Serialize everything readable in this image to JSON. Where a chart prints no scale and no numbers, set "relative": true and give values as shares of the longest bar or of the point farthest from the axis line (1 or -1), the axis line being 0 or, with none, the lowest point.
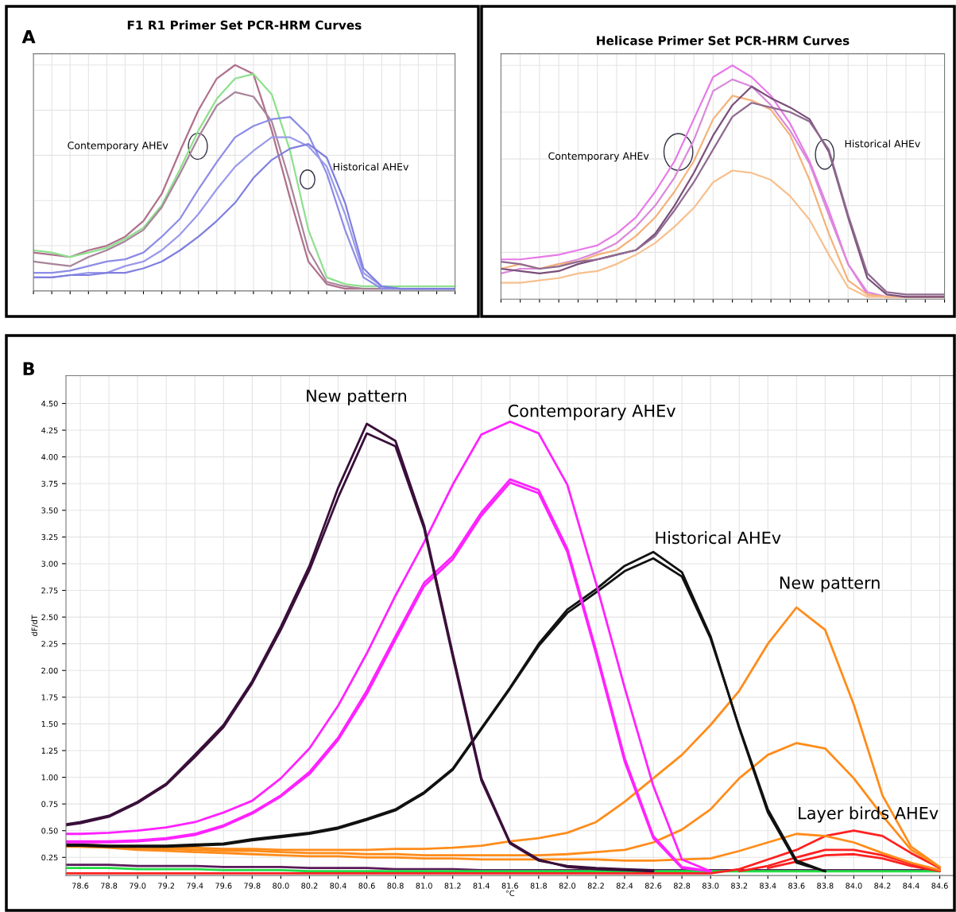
{
  "chart_data": [
    {
      "type": "line",
      "title": "F1 R1 Primer Set PCR-HRM Curves",
      "relative": true,
      "grid": true,
      "tick_labels": false,
      "categories": [
        null,
        null,
        null,
        null,
        null,
        null,
        null,
        null,
        null,
        null,
        null,
        null,
        null,
        null,
        null,
        null,
        null,
        null,
        null,
        null,
        null,
        null,
        null,
        null
      ],
      "annotations": [
        "A",
        "Contemporary AHEv",
        "Historical AHEv"
      ],
      "series": [
        {
          "color": "#b0708c",
          "values": [
            0.17,
            0.16,
            0.15,
            0.18,
            0.2,
            0.24,
            0.31,
            0.43,
            0.62,
            0.8,
            0.94,
            1.0,
            0.96,
            0.71,
            0.41,
            0.13,
            0.03,
            0.01,
            0.01,
            0.01,
            0.01,
            0.01,
            0.01,
            0.01
          ]
        },
        {
          "color": "#8ee08e",
          "values": [
            0.18,
            0.17,
            0.15,
            0.17,
            0.19,
            0.23,
            0.28,
            0.38,
            0.54,
            0.71,
            0.85,
            0.94,
            0.96,
            0.87,
            0.62,
            0.27,
            0.06,
            0.03,
            0.02,
            0.02,
            0.02,
            0.02,
            0.02,
            0.02
          ]
        },
        {
          "color": "#a8849a",
          "values": [
            0.13,
            0.12,
            0.11,
            0.15,
            0.18,
            0.22,
            0.27,
            0.37,
            0.52,
            0.68,
            0.82,
            0.88,
            0.86,
            0.75,
            0.48,
            0.18,
            0.04,
            0.02,
            0.01,
            0.01,
            0.01,
            0.01,
            0.01,
            0.01
          ]
        },
        {
          "color": "#8c8ce6",
          "values": [
            0.08,
            0.08,
            0.09,
            0.11,
            0.13,
            0.14,
            0.17,
            0.24,
            0.32,
            0.45,
            0.57,
            0.68,
            0.73,
            0.76,
            0.77,
            0.69,
            0.52,
            0.27,
            0.06,
            0.01,
            0.01,
            0.01,
            0.01,
            0.01
          ]
        },
        {
          "color": "#9a9aea",
          "values": [
            0.06,
            0.06,
            0.07,
            0.08,
            0.08,
            0.11,
            0.13,
            0.18,
            0.25,
            0.34,
            0.45,
            0.55,
            0.62,
            0.68,
            0.68,
            0.64,
            0.55,
            0.34,
            0.08,
            0.02,
            0.01,
            0.01,
            0.01,
            0.01
          ]
        },
        {
          "color": "#7f7fe0",
          "values": [
            0.06,
            0.06,
            0.07,
            0.07,
            0.08,
            0.08,
            0.1,
            0.13,
            0.18,
            0.24,
            0.31,
            0.39,
            0.5,
            0.58,
            0.63,
            0.65,
            0.59,
            0.39,
            0.1,
            0.02,
            0.01,
            0.01,
            0.01,
            0.01
          ]
        }
      ]
    },
    {
      "type": "line",
      "title": "Helicase Primer Set PCR-HRM Curves",
      "relative": true,
      "grid": true,
      "tick_labels": false,
      "categories": [
        null,
        null,
        null,
        null,
        null,
        null,
        null,
        null,
        null,
        null,
        null,
        null,
        null,
        null,
        null,
        null,
        null,
        null,
        null,
        null,
        null,
        null,
        null,
        null
      ],
      "annotations": [
        "Contemporary AHEv",
        "Historical AHEv"
      ],
      "series": [
        {
          "color": "#e77ae7",
          "values": [
            0.17,
            0.17,
            0.18,
            0.19,
            0.21,
            0.23,
            0.28,
            0.35,
            0.46,
            0.59,
            0.77,
            0.95,
            1.0,
            0.95,
            0.87,
            0.75,
            0.59,
            0.38,
            0.15,
            0.02,
            0.01,
            0.01,
            null,
            null
          ]
        },
        {
          "color": "#d98ad9",
          "values": [
            0.11,
            0.13,
            0.13,
            0.15,
            0.17,
            0.2,
            0.24,
            0.31,
            0.4,
            0.52,
            0.68,
            0.89,
            0.94,
            0.91,
            0.83,
            0.72,
            0.58,
            0.36,
            0.15,
            0.03,
            0.01,
            0.01,
            0.01,
            0.01
          ]
        },
        {
          "color": "#f4b27a",
          "values": [
            0.13,
            0.15,
            0.13,
            0.15,
            0.16,
            0.19,
            0.21,
            0.27,
            0.35,
            0.46,
            0.59,
            0.77,
            0.87,
            0.85,
            0.81,
            0.7,
            0.51,
            0.28,
            0.08,
            0.02,
            0.01,
            0.01,
            0.01,
            0.01
          ]
        },
        {
          "color": "#f7c08f",
          "values": [
            0.07,
            0.07,
            0.08,
            0.09,
            0.11,
            0.12,
            0.15,
            0.19,
            0.24,
            0.31,
            0.39,
            0.5,
            0.55,
            0.54,
            0.51,
            0.44,
            0.34,
            0.19,
            0.05,
            0.01,
            0.01,
            0.01,
            0.01,
            0.01
          ]
        },
        {
          "color": "#7a4f7a",
          "values": [
            0.13,
            0.12,
            0.11,
            0.12,
            0.15,
            0.17,
            0.19,
            0.21,
            0.28,
            0.4,
            0.54,
            0.7,
            0.83,
            0.91,
            0.86,
            0.82,
            0.77,
            0.63,
            0.35,
            0.09,
            0.02,
            0.01,
            0.01,
            0.01
          ]
        },
        {
          "color": "#8f6a8f",
          "values": [
            0.16,
            0.15,
            0.13,
            0.14,
            0.16,
            0.17,
            0.19,
            0.21,
            0.27,
            0.38,
            0.5,
            0.64,
            0.78,
            0.84,
            0.82,
            0.8,
            0.76,
            0.64,
            0.36,
            0.11,
            0.03,
            0.02,
            0.02,
            0.02
          ]
        }
      ]
    },
    {
      "type": "line",
      "xlabel": "°C",
      "ylabel": "dF/dT",
      "grid": true,
      "x": [
        78.5,
        78.6,
        78.8,
        79.0,
        79.2,
        79.4,
        79.6,
        79.8,
        80.0,
        80.2,
        80.4,
        80.6,
        80.8,
        81.0,
        81.2,
        81.4,
        81.6,
        81.8,
        82.0,
        82.2,
        82.4,
        82.6,
        82.8,
        83.0,
        83.2,
        83.4,
        83.6,
        83.8,
        84.0,
        84.2,
        84.4,
        84.6
      ],
      "xlim": [
        78.5,
        84.7
      ],
      "ylim": [
        0.08,
        4.76
      ],
      "xticks": [
        {
          "value": 78.6,
          "label": "78.6"
        },
        {
          "value": 78.8,
          "label": "78.8"
        },
        {
          "value": 79.0,
          "label": "79.0"
        },
        {
          "value": 79.2,
          "label": "79.2"
        },
        {
          "value": 79.4,
          "label": "79.4"
        },
        {
          "value": 79.6,
          "label": "79.6"
        },
        {
          "value": 79.8,
          "label": "79.8"
        },
        {
          "value": 80.0,
          "label": "80.0"
        },
        {
          "value": 80.2,
          "label": "80.2"
        },
        {
          "value": 80.4,
          "label": "80.4"
        },
        {
          "value": 80.6,
          "label": "80.6"
        },
        {
          "value": 80.8,
          "label": "80.8"
        },
        {
          "value": 81.0,
          "label": "81.0"
        },
        {
          "value": 81.2,
          "label": "81.2"
        },
        {
          "value": 81.4,
          "label": "81.4"
        },
        {
          "value": 81.6,
          "label": "81.6"
        },
        {
          "value": 81.8,
          "label": "81.8"
        },
        {
          "value": 82.0,
          "label": "82.0"
        },
        {
          "value": 82.2,
          "label": "82.2"
        },
        {
          "value": 82.4,
          "label": "82.4"
        },
        {
          "value": 82.6,
          "label": "82.6"
        },
        {
          "value": 82.8,
          "label": "82.8"
        },
        {
          "value": 83.0,
          "label": "83.0"
        },
        {
          "value": 83.2,
          "label": "83.2"
        },
        {
          "value": 83.4,
          "label": "83.4"
        },
        {
          "value": 83.6,
          "label": "83.6"
        },
        {
          "value": 83.8,
          "label": "83.8"
        },
        {
          "value": 84.0,
          "label": "84.0"
        },
        {
          "value": 84.2,
          "label": "84.2"
        },
        {
          "value": 84.4,
          "label": "84.4"
        },
        {
          "value": 84.6,
          "label": "84.6"
        }
      ],
      "yticks": [
        {
          "value": 0.25,
          "label": "0.25"
        },
        {
          "value": 0.5,
          "label": "0.50"
        },
        {
          "value": 0.75,
          "label": "0.75"
        },
        {
          "value": 1.0,
          "label": "1.00"
        },
        {
          "value": 1.25,
          "label": "1.25"
        },
        {
          "value": 1.5,
          "label": "1.50"
        },
        {
          "value": 1.75,
          "label": "1.75"
        },
        {
          "value": 2.0,
          "label": "2.00"
        },
        {
          "value": 2.25,
          "label": "2.25"
        },
        {
          "value": 2.5,
          "label": "2.50"
        },
        {
          "value": 2.75,
          "label": "2.75"
        },
        {
          "value": 3.0,
          "label": "3.00"
        },
        {
          "value": 3.25,
          "label": "3.25"
        },
        {
          "value": 3.5,
          "label": "3.50"
        },
        {
          "value": 3.75,
          "label": "3.75"
        },
        {
          "value": 4.0,
          "label": "4.00"
        },
        {
          "value": 4.25,
          "label": "4.25"
        },
        {
          "value": 4.5,
          "label": "4.50"
        }
      ],
      "annotations": [
        "B",
        "New pattern",
        "Contemporary AHEv",
        "Historical AHEv",
        "New pattern",
        "Layer birds AHEv"
      ],
      "series": [
        {
          "color": "#5a1a5a",
          "values": [
            0.18,
            0.18,
            0.18,
            0.17,
            0.17,
            0.17,
            0.16,
            0.16,
            0.16,
            0.15,
            0.15,
            0.15,
            0.14,
            0.14,
            0.14,
            0.13,
            0.13,
            0.13,
            0.13,
            0.13,
            0.13,
            0.13,
            0.13,
            0.13,
            0.13,
            0.13,
            0.13,
            0.13,
            0.13,
            0.13,
            0.13,
            0.13
          ]
        },
        {
          "color": "#22dd44",
          "values": [
            0.15,
            0.15,
            0.15,
            0.14,
            0.14,
            0.14,
            0.13,
            0.13,
            0.13,
            0.12,
            0.12,
            0.12,
            0.12,
            0.12,
            0.12,
            0.12,
            0.12,
            0.12,
            0.12,
            0.12,
            0.12,
            0.12,
            0.12,
            0.12,
            0.12,
            0.12,
            0.12,
            0.12,
            0.12,
            0.12,
            0.12,
            0.12
          ]
        },
        {
          "color": "#ff2020",
          "values": [
            0.1,
            0.1,
            0.1,
            0.1,
            0.1,
            0.1,
            0.1,
            0.1,
            0.1,
            0.1,
            0.1,
            0.1,
            0.1,
            0.1,
            0.1,
            0.1,
            0.1,
            0.1,
            0.1,
            0.1,
            0.1,
            0.1,
            0.1,
            0.1,
            0.14,
            0.23,
            0.32,
            0.45,
            0.5,
            0.45,
            0.29,
            0.15
          ]
        },
        {
          "color": "#ff2020",
          "values": [
            null,
            null,
            null,
            null,
            null,
            null,
            null,
            null,
            null,
            null,
            null,
            null,
            null,
            null,
            null,
            null,
            null,
            null,
            null,
            null,
            null,
            null,
            null,
            null,
            0.12,
            0.17,
            0.25,
            0.32,
            0.32,
            0.27,
            0.19,
            0.13
          ]
        },
        {
          "color": "#ff2020",
          "values": [
            null,
            null,
            null,
            null,
            null,
            null,
            null,
            null,
            null,
            null,
            null,
            null,
            null,
            null,
            null,
            null,
            null,
            null,
            null,
            null,
            null,
            null,
            null,
            null,
            null,
            0.15,
            0.21,
            0.27,
            0.28,
            0.24,
            0.17,
            0.12
          ]
        },
        {
          "color": "#ff8c1a",
          "values": [
            0.37,
            0.37,
            0.36,
            0.35,
            0.34,
            0.34,
            0.33,
            0.33,
            0.32,
            0.32,
            0.32,
            0.32,
            0.33,
            0.33,
            0.34,
            0.36,
            0.4,
            0.43,
            0.48,
            0.58,
            0.77,
            0.99,
            1.21,
            1.49,
            1.81,
            2.25,
            2.59,
            2.38,
            1.68,
            0.83,
            0.35,
            0.16
          ]
        },
        {
          "color": "#ff8c1a",
          "values": [
            0.36,
            0.35,
            0.35,
            0.33,
            0.33,
            0.32,
            0.31,
            0.31,
            0.3,
            0.29,
            0.29,
            0.28,
            0.28,
            0.27,
            0.27,
            0.27,
            0.27,
            0.27,
            0.28,
            0.3,
            0.32,
            0.39,
            0.51,
            0.7,
            0.99,
            1.21,
            1.32,
            1.27,
            0.99,
            0.64,
            0.32,
            0.16
          ]
        },
        {
          "color": "#ff8c1a",
          "values": [
            0.35,
            0.35,
            0.34,
            0.32,
            0.31,
            0.3,
            0.29,
            0.28,
            0.27,
            0.26,
            0.26,
            0.25,
            0.25,
            0.24,
            0.24,
            0.23,
            0.23,
            0.23,
            0.23,
            0.23,
            0.22,
            0.22,
            0.23,
            0.24,
            0.31,
            0.39,
            0.47,
            0.45,
            0.39,
            0.29,
            0.2,
            0.13
          ]
        },
        {
          "color": "#111111",
          "values": [
            0.37,
            0.37,
            0.36,
            0.36,
            0.36,
            0.37,
            0.38,
            0.42,
            0.45,
            0.48,
            0.53,
            0.61,
            0.7,
            0.86,
            1.08,
            1.46,
            1.84,
            2.25,
            2.57,
            2.76,
            2.98,
            3.11,
            2.92,
            2.32,
            1.46,
            0.67,
            0.2,
            0.12,
            null,
            null,
            null,
            null
          ]
        },
        {
          "color": "#111111",
          "values": [
            0.36,
            0.36,
            0.35,
            0.35,
            0.35,
            0.36,
            0.37,
            0.41,
            0.44,
            0.47,
            0.52,
            0.6,
            0.69,
            0.85,
            1.07,
            1.45,
            1.83,
            2.23,
            2.54,
            2.73,
            2.93,
            3.05,
            2.88,
            2.3,
            1.47,
            0.7,
            0.22,
            0.12,
            null,
            null,
            null,
            null
          ]
        },
        {
          "color": "#ff22ff",
          "values": [
            0.47,
            0.47,
            0.48,
            0.5,
            0.53,
            0.58,
            0.67,
            0.78,
            0.99,
            1.27,
            1.67,
            2.16,
            2.7,
            3.2,
            3.74,
            4.21,
            4.33,
            4.22,
            3.74,
            2.82,
            1.84,
            0.92,
            0.23,
            0.12,
            null,
            null,
            null,
            null,
            null,
            null,
            null,
            null
          ]
        },
        {
          "color": "#ff22ff",
          "values": [
            0.4,
            0.4,
            0.4,
            0.41,
            0.43,
            0.47,
            0.55,
            0.67,
            0.83,
            1.05,
            1.37,
            1.81,
            2.32,
            2.82,
            3.07,
            3.48,
            3.79,
            3.69,
            3.14,
            2.19,
            1.18,
            0.45,
            0.16,
            0.12,
            null,
            null,
            null,
            null,
            null,
            null,
            null,
            null
          ]
        },
        {
          "color": "#ff22ff",
          "values": [
            0.39,
            0.39,
            0.39,
            0.4,
            0.42,
            0.46,
            0.54,
            0.66,
            0.82,
            1.03,
            1.35,
            1.78,
            2.29,
            2.79,
            3.04,
            3.45,
            3.76,
            3.66,
            3.11,
            2.16,
            1.15,
            0.43,
            0.15,
            0.12,
            null,
            null,
            null,
            null,
            null,
            null,
            null,
            null
          ]
        },
        {
          "color": "#3a0f3a",
          "values": [
            0.56,
            0.58,
            0.64,
            0.77,
            0.94,
            1.21,
            1.49,
            1.9,
            2.41,
            2.98,
            3.71,
            4.31,
            4.15,
            3.36,
            2.16,
            0.99,
            0.39,
            0.23,
            0.16,
            0.14,
            0.13,
            0.12,
            null,
            null,
            null,
            null,
            null,
            null,
            null,
            null,
            null,
            null
          ]
        },
        {
          "color": "#3a0f3a",
          "values": [
            0.55,
            0.57,
            0.63,
            0.76,
            0.93,
            1.19,
            1.47,
            1.88,
            2.38,
            2.94,
            3.62,
            4.22,
            4.1,
            3.33,
            2.13,
            0.97,
            0.38,
            0.22,
            0.17,
            0.15,
            0.14,
            0.13,
            null,
            null,
            null,
            null,
            null,
            null,
            null,
            null,
            null,
            null
          ]
        }
      ]
    }
  ]
}
